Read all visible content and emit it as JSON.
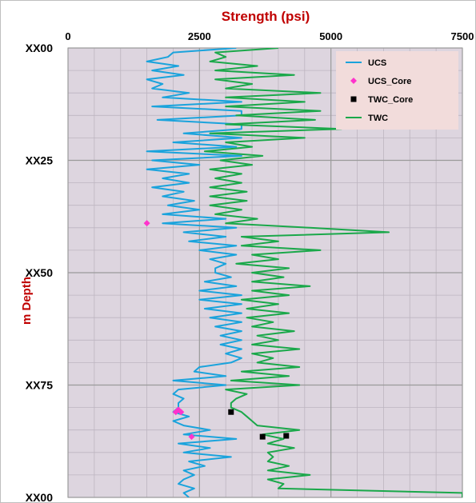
{
  "chart_data": {
    "type": "line",
    "title": "Strength (psi)",
    "xlabel": "",
    "ylabel": "m Depth",
    "xlim": [
      0,
      7500
    ],
    "ylim": [
      0,
      100
    ],
    "x_axis_position": "top",
    "y_axis_inverted": true,
    "x_ticks": [
      0,
      2500,
      5000,
      7500
    ],
    "x_tick_labels": [
      "0",
      "2500",
      "5000",
      "7500"
    ],
    "y_ticks": [
      0,
      25,
      50,
      75,
      100
    ],
    "y_tick_labels": [
      "XX00",
      "XX25",
      "XX50",
      "XX75",
      "XX00"
    ],
    "grid": true,
    "legend_position": "top-right",
    "plot_background": "#ddd5df",
    "legend_background": "#f2dcdb",
    "series": [
      {
        "name": "UCS",
        "kind": "line",
        "color": "#1aa3dc",
        "depth": [
          0,
          1,
          2,
          3,
          4,
          5,
          6,
          7,
          8,
          9,
          10,
          11,
          12,
          13,
          14,
          15,
          16,
          17,
          18,
          19,
          20,
          21,
          22,
          23,
          24,
          25,
          26,
          27,
          28,
          29,
          30,
          31,
          32,
          33,
          34,
          35,
          36,
          37,
          38,
          39,
          40,
          41,
          42,
          43,
          44,
          45,
          46,
          47,
          48,
          49,
          50,
          51,
          52,
          53,
          54,
          55,
          56,
          57,
          58,
          59,
          60,
          61,
          62,
          63,
          64,
          65,
          66,
          67,
          68,
          69,
          70,
          71,
          72,
          73,
          74,
          75,
          76,
          77,
          78,
          79,
          80,
          81,
          82,
          83,
          84,
          85,
          86,
          87,
          88,
          89,
          90,
          91,
          92,
          93,
          94,
          95,
          96,
          97,
          98,
          99,
          100
        ],
        "values": [
          3200,
          2000,
          1900,
          1500,
          2100,
          1600,
          2200,
          1500,
          1800,
          1600,
          2300,
          1800,
          3300,
          1600,
          3300,
          3300,
          1700,
          3300,
          3300,
          2200,
          3300,
          2000,
          3200,
          1500,
          3300,
          1600,
          2500,
          1500,
          2300,
          1800,
          2300,
          1600,
          2200,
          1800,
          2400,
          1900,
          2500,
          1800,
          3000,
          1800,
          3200,
          2200,
          3000,
          2300,
          3200,
          2500,
          3200,
          2700,
          3000,
          2800,
          2800,
          3100,
          2600,
          3200,
          2500,
          3300,
          2500,
          3300,
          2600,
          3300,
          2700,
          3300,
          2800,
          3300,
          2900,
          3300,
          2900,
          3300,
          3000,
          3300,
          3100,
          2500,
          2400,
          3000,
          2000,
          3000,
          2100,
          2000,
          2200,
          2100,
          2100,
          2000,
          2300,
          2000,
          2200,
          2700,
          2200,
          3200,
          2100,
          2700,
          2200,
          3100,
          2300,
          2600,
          2200,
          2400,
          2200,
          2100,
          2400,
          2200,
          2300
        ]
      },
      {
        "name": "UCS_Core",
        "kind": "scatter",
        "marker": "diamond",
        "color": "#ff33cc",
        "points": [
          {
            "x": 1500,
            "y": 39
          },
          {
            "x": 2050,
            "y": 81
          },
          {
            "x": 2100,
            "y": 80.5
          },
          {
            "x": 2150,
            "y": 81
          },
          {
            "x": 2350,
            "y": 86.5
          }
        ]
      },
      {
        "name": "TWC_Core",
        "kind": "scatter",
        "marker": "square",
        "color": "#000000",
        "points": [
          {
            "x": 3100,
            "y": 81
          },
          {
            "x": 3700,
            "y": 86.5
          },
          {
            "x": 4150,
            "y": 86.3
          }
        ]
      },
      {
        "name": "TWC",
        "kind": "line",
        "color": "#1aa84a",
        "depth": [
          0,
          1,
          2,
          3,
          4,
          5,
          6,
          7,
          8,
          9,
          10,
          11,
          12,
          13,
          14,
          15,
          16,
          17,
          18,
          19,
          20,
          21,
          22,
          23,
          24,
          25,
          26,
          27,
          28,
          29,
          30,
          31,
          32,
          33,
          34,
          35,
          36,
          37,
          38,
          39,
          40,
          41,
          42,
          43,
          44,
          45,
          46,
          47,
          48,
          49,
          50,
          51,
          52,
          53,
          54,
          55,
          56,
          57,
          58,
          59,
          60,
          61,
          62,
          63,
          64,
          65,
          66,
          67,
          68,
          69,
          70,
          71,
          72,
          73,
          74,
          75,
          76,
          77,
          78,
          79,
          80,
          81,
          82,
          83,
          84,
          85,
          86,
          87,
          88,
          89,
          90,
          91,
          92,
          93,
          94,
          95,
          96,
          97,
          98,
          99,
          100
        ],
        "values": [
          4000,
          2800,
          3000,
          2700,
          3600,
          2800,
          4300,
          2800,
          3500,
          3000,
          4800,
          3000,
          4500,
          3000,
          4800,
          3200,
          4700,
          3000,
          5200,
          2700,
          4500,
          3000,
          3500,
          2600,
          3700,
          2900,
          3500,
          2700,
          3300,
          2800,
          3300,
          2700,
          3400,
          2700,
          3400,
          2700,
          3300,
          2800,
          3600,
          3000,
          4600,
          6100,
          3300,
          4000,
          3300,
          4800,
          3500,
          4000,
          3200,
          4200,
          3500,
          4100,
          3500,
          4600,
          3500,
          4200,
          3300,
          4000,
          3400,
          4200,
          3400,
          3900,
          3500,
          4300,
          3600,
          4000,
          3500,
          4400,
          3500,
          3900,
          3600,
          4400,
          3300,
          4200,
          3100,
          4400,
          3000,
          3400,
          3200,
          3100,
          3100,
          3300,
          3400,
          3500,
          3600,
          4400,
          3700,
          4100,
          3800,
          4300,
          3800,
          3900,
          3800,
          4200,
          3800,
          4600,
          3800,
          4100,
          4000,
          7500,
          7500
        ]
      }
    ]
  }
}
